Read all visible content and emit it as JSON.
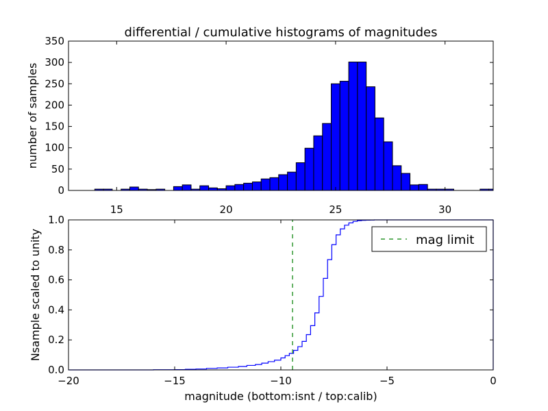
{
  "title": "differential / cumulative histograms of magnitudes",
  "colors": {
    "bars": "#0000ff",
    "bar_edge": "#000000",
    "step_line": "#0000ff",
    "mag_limit_line": "#008000"
  },
  "chart_data": [
    {
      "type": "bar",
      "title": "differential / cumulative histograms of magnitudes",
      "xlabel": "",
      "ylabel": "number of samples",
      "xlim": [
        12.8,
        32.2
      ],
      "ylim": [
        0,
        350
      ],
      "xticks": [
        15,
        20,
        25,
        30
      ],
      "yticks": [
        0,
        50,
        100,
        150,
        200,
        250,
        300,
        350
      ],
      "xtick_position": "bottom",
      "grid": false,
      "bin_edges": [
        12.8,
        13.2,
        13.6,
        14.0,
        14.4,
        14.8,
        15.2,
        15.6,
        16.0,
        16.4,
        16.8,
        17.2,
        17.6,
        18.0,
        18.4,
        18.8,
        19.2,
        19.6,
        20.0,
        20.4,
        20.8,
        21.2,
        21.6,
        22.0,
        22.4,
        22.8,
        23.2,
        23.6,
        24.0,
        24.4,
        24.8,
        25.2,
        25.6,
        26.0,
        26.4,
        26.8,
        27.2,
        27.6,
        28.0,
        28.4,
        28.8,
        29.2,
        29.6,
        30.0,
        30.4,
        30.8,
        31.2,
        31.6,
        32.0,
        32.4
      ],
      "values": [
        0,
        0,
        0,
        3,
        3,
        0,
        3,
        8,
        3,
        2,
        3,
        0,
        9,
        13,
        3,
        11,
        6,
        4,
        11,
        14,
        17,
        20,
        27,
        30,
        37,
        43,
        65,
        99,
        128,
        157,
        250,
        256,
        301,
        301,
        243,
        170,
        114,
        58,
        40,
        13,
        14,
        3,
        3,
        3,
        0,
        0,
        0,
        3,
        3
      ]
    },
    {
      "type": "line",
      "title": "",
      "xlabel": "magnitude (bottom:isnt / top:calib)",
      "ylabel": "Nsample scaled to unity",
      "xlim": [
        -20,
        0
      ],
      "ylim": [
        0.0,
        1.0
      ],
      "xticks": [
        -20,
        -15,
        -10,
        -5,
        0
      ],
      "ytick_labels": [
        "0.0",
        "0.2",
        "0.4",
        "0.6",
        "0.8",
        "1.0"
      ],
      "grid": false,
      "legend": {
        "placement": "top-right",
        "entries": [
          "mag limit"
        ]
      },
      "series": [
        {
          "style": "step",
          "x": [
            -20.0,
            -19.0,
            -18.0,
            -17.0,
            -16.0,
            -15.0,
            -14.5,
            -14.0,
            -13.5,
            -13.0,
            -12.5,
            -12.0,
            -11.6,
            -11.2,
            -10.9,
            -10.6,
            -10.3,
            -10.0,
            -9.8,
            -9.6,
            -9.4,
            -9.2,
            -9.0,
            -8.8,
            -8.6,
            -8.4,
            -8.2,
            -8.0,
            -7.8,
            -7.6,
            -7.4,
            -7.2,
            -7.0,
            -6.8,
            -6.6,
            -6.4,
            -6.2,
            -6.0,
            -5.8,
            -5.6,
            -5.4,
            -5.2,
            -5.0,
            -4.8,
            0.0
          ],
          "y": [
            0.0,
            0.0,
            0.0,
            0.0,
            0.001,
            0.002,
            0.004,
            0.006,
            0.01,
            0.013,
            0.018,
            0.023,
            0.03,
            0.036,
            0.045,
            0.055,
            0.065,
            0.08,
            0.095,
            0.11,
            0.13,
            0.155,
            0.19,
            0.235,
            0.295,
            0.38,
            0.49,
            0.61,
            0.735,
            0.835,
            0.9,
            0.94,
            0.965,
            0.98,
            0.99,
            0.995,
            0.997,
            0.998,
            0.999,
            1.0,
            1.0,
            1.0,
            1.0,
            1.0,
            1.0
          ]
        },
        {
          "name": "mag limit",
          "style": "dashed",
          "x": [
            -9.45,
            -9.45
          ],
          "y": [
            0.0,
            1.0
          ]
        }
      ]
    }
  ]
}
